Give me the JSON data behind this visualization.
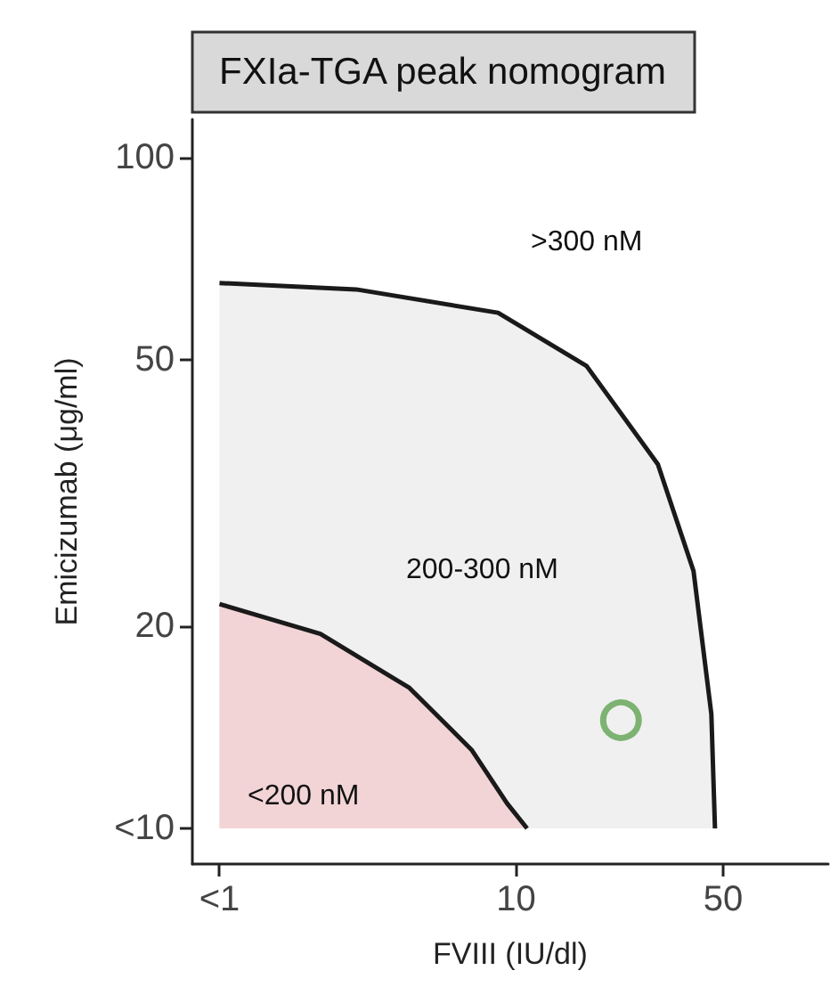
{
  "chart_data": {
    "type": "area",
    "title": "FXIa-TGA peak nomogram",
    "xlabel": "FVIII (IU/dl)",
    "ylabel": "Emicizumab (μg/ml)",
    "log": "xy",
    "xlim": [
      0.81,
      113
    ],
    "ylim": [
      8.85,
      114
    ],
    "xticks": [
      {
        "value": 1,
        "label": "<1"
      },
      10,
      50
    ],
    "yticks": [
      {
        "value": 10,
        "label": "<10"
      },
      20,
      50,
      100
    ],
    "series": [
      {
        "color": "#f0f0f0",
        "x": [
          1,
          2.89,
          8.7,
          17.3,
          30.1,
          39.7,
          45.6,
          46.9
        ],
        "values": [
          65,
          63.6,
          58.7,
          48.9,
          34.9,
          24.2,
          14.8,
          10
        ]
      },
      {
        "color": "#f2d4d6",
        "x": [
          1,
          2.19,
          4.37,
          7.08,
          9.33,
          10.9
        ],
        "values": [
          21.6,
          19.5,
          16.2,
          13.1,
          10.9,
          10
        ]
      },
      {
        "type": "scatter",
        "marker": "circle",
        "color": "#5fa452",
        "x": [
          22.6
        ],
        "values": [
          14.5
        ]
      }
    ],
    "annotations": [
      ">300 nM",
      "200-300 nM",
      "<200 nM"
    ]
  }
}
